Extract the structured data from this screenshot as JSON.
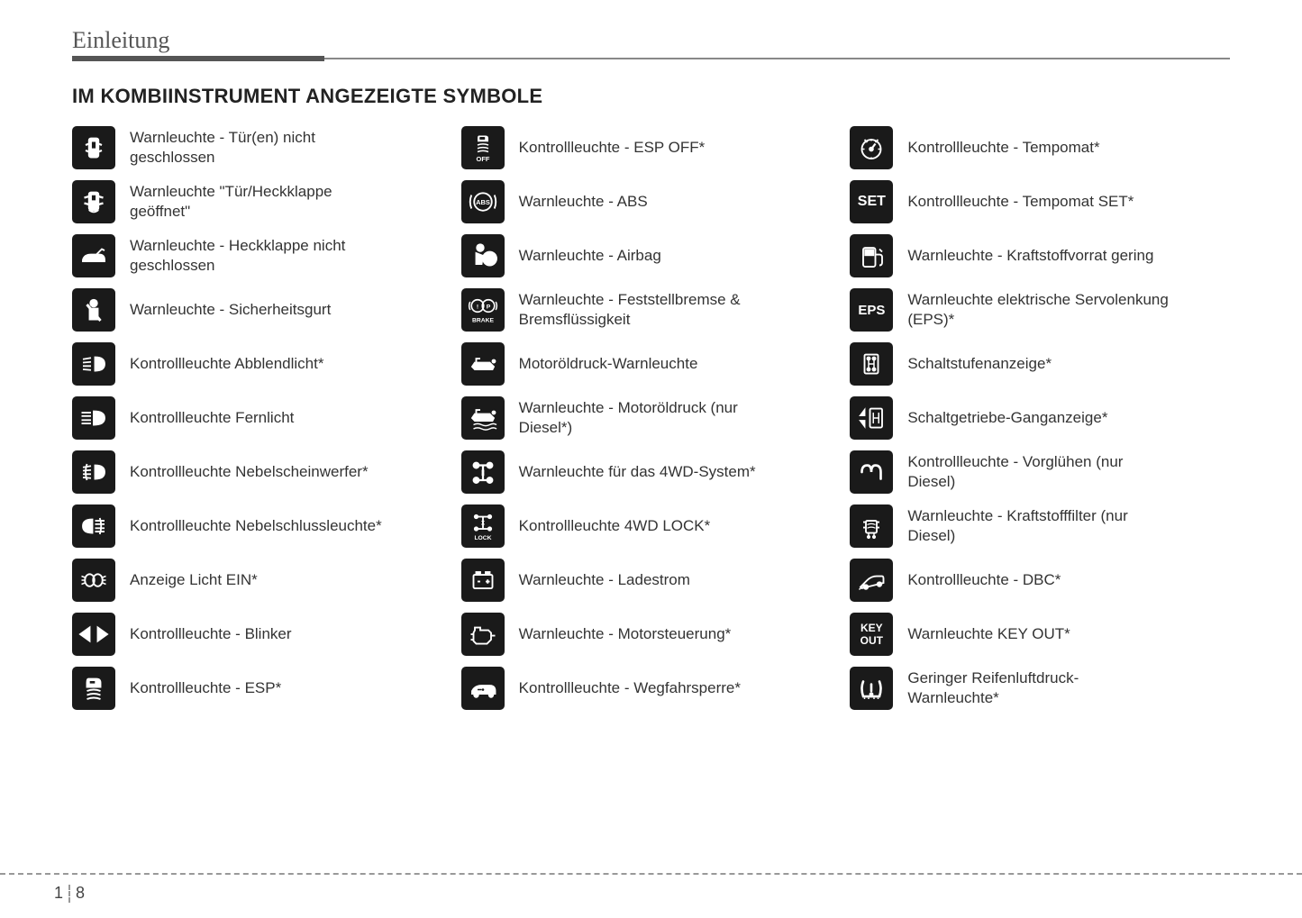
{
  "section_name": "Einleitung",
  "main_title": "IM KOMBIINSTRUMENT ANGEZEIGTE SYMBOLE",
  "page_chapter": "1",
  "page_number": "8",
  "columns": [
    [
      {
        "icon": "door-open",
        "label": "Warnleuchte - Tür(en) nicht geschlossen"
      },
      {
        "icon": "door-tailgate",
        "label": "Warnleuchte \"Tür/Heckklappe geöffnet\""
      },
      {
        "icon": "tailgate",
        "label": "Warnleuchte - Heckklappe nicht geschlossen"
      },
      {
        "icon": "seatbelt",
        "label": "Warnleuchte - Sicherheitsgurt"
      },
      {
        "icon": "low-beam",
        "label": "Kontrollleuchte Abblendlicht*"
      },
      {
        "icon": "high-beam",
        "label": "Kontrollleuchte Fernlicht"
      },
      {
        "icon": "fog-front",
        "label": "Kontrollleuchte Nebelscheinwerfer*"
      },
      {
        "icon": "fog-rear",
        "label": "Kontrollleuchte Nebelschlussleuchte*"
      },
      {
        "icon": "light-on",
        "label": "Anzeige Licht EIN*"
      },
      {
        "icon": "turn-signal",
        "label": "Kontrollleuchte - Blinker"
      },
      {
        "icon": "esp",
        "label": "Kontrollleuchte - ESP*"
      }
    ],
    [
      {
        "icon": "esp-off",
        "label": "Kontrollleuchte - ESP OFF*"
      },
      {
        "icon": "abs",
        "label": "Warnleuchte - ABS"
      },
      {
        "icon": "airbag",
        "label": "Warnleuchte - Airbag"
      },
      {
        "icon": "brake",
        "label": "Warnleuchte - Feststellbremse & Bremsflüssigkeit"
      },
      {
        "icon": "oil",
        "label": "Motoröldruck-Warnleuchte"
      },
      {
        "icon": "oil-diesel",
        "label": "Warnleuchte - Motoröldruck (nur Diesel*)"
      },
      {
        "icon": "4wd",
        "label": "Warnleuchte für das 4WD-System*"
      },
      {
        "icon": "4wd-lock",
        "label": "Kontrollleuchte 4WD LOCK*"
      },
      {
        "icon": "battery",
        "label": "Warnleuchte - Ladestrom"
      },
      {
        "icon": "engine",
        "label": "Warnleuchte - Motorsteuerung*"
      },
      {
        "icon": "immobilizer",
        "label": "Kontrollleuchte - Wegfahrsperre*"
      }
    ],
    [
      {
        "icon": "cruise",
        "label": "Kontrollleuchte - Tempomat*"
      },
      {
        "icon": "set",
        "label": "Kontrollleuchte - Tempomat SET*"
      },
      {
        "icon": "fuel",
        "label": "Warnleuchte - Kraftstoffvorrat gering"
      },
      {
        "icon": "eps",
        "label": "Warnleuchte elektrische Servolenkung (EPS)*"
      },
      {
        "icon": "gear-shift",
        "label": "Schaltstufenanzeige*"
      },
      {
        "icon": "gear-manual",
        "label": "Schaltgetriebe-Ganganzeige*"
      },
      {
        "icon": "glow",
        "label": "Kontrollleuchte - Vorglühen (nur Diesel)"
      },
      {
        "icon": "fuel-filter",
        "label": "Warnleuchte - Kraftstofffilter (nur Diesel)"
      },
      {
        "icon": "dbc",
        "label": "Kontrollleuchte - DBC*"
      },
      {
        "icon": "key-out",
        "label": "Warnleuchte KEY OUT*"
      },
      {
        "icon": "tpms",
        "label": "Geringer Reifenluftdruck-Warnleuchte*"
      }
    ]
  ]
}
